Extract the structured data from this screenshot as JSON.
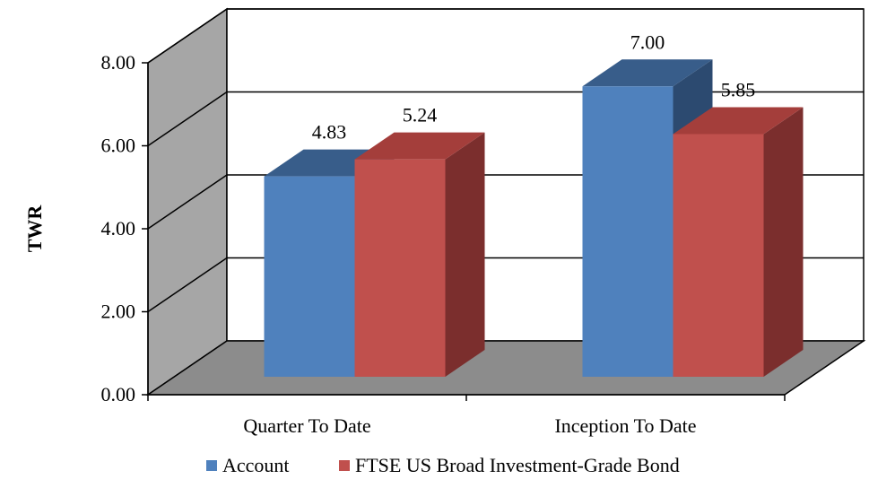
{
  "chart_data": {
    "type": "bar",
    "style": "3d-clustered-column",
    "categories": [
      "Quarter To Date",
      "Inception To Date"
    ],
    "series": [
      {
        "name": "Account",
        "values": [
          4.83,
          7.0
        ],
        "labels": [
          "4.83",
          "7.00"
        ],
        "color": "#4F81BD",
        "top_color": "#385D8A",
        "side_color": "#2C4A70"
      },
      {
        "name": "FTSE US Broad Investment-Grade Bond",
        "values": [
          5.24,
          5.85
        ],
        "labels": [
          "5.24",
          "5.85"
        ],
        "color": "#C0504D",
        "top_color": "#A43E3B",
        "side_color": "#7B2E2D"
      }
    ],
    "ylabel": "TWR",
    "xlabel": "",
    "ylim": [
      0,
      8
    ],
    "yticks": [
      "0.00",
      "2.00",
      "4.00",
      "6.00",
      "8.00"
    ],
    "grid": true,
    "legend_position": "bottom",
    "colors": {
      "wall": "#FFFFFF",
      "side_wall": "#A6A6A6",
      "floor": "#8C8C8C"
    }
  }
}
